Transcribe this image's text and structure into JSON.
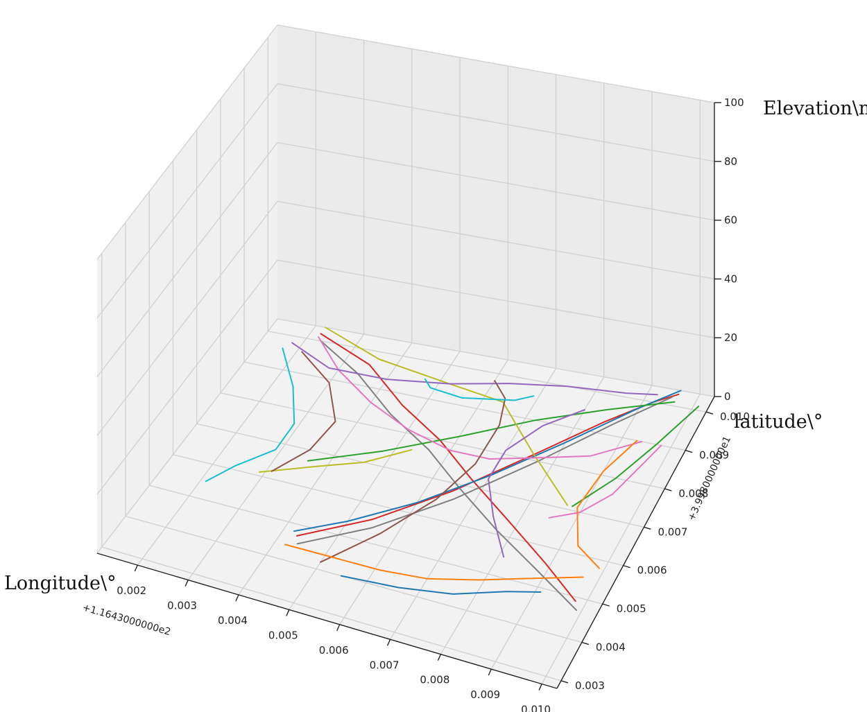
{
  "chart_data": {
    "type": "line",
    "projection": "3d",
    "title": "",
    "xlabel": "Longitude\\°",
    "ylabel": "latitude\\°",
    "zlabel": "Elevation\\m",
    "x_offset_label": "+1.1643000000e2",
    "y_offset_label": "+3.9980000000e1",
    "xlim": [
      0.0012,
      0.0103
    ],
    "ylim": [
      0.0028,
      0.0104
    ],
    "zlim": [
      0,
      100
    ],
    "x_ticks": [
      "0.002",
      "0.003",
      "0.004",
      "0.005",
      "0.006",
      "0.007",
      "0.008",
      "0.009",
      "0.010"
    ],
    "y_ticks": [
      "0.003",
      "0.004",
      "0.005",
      "0.006",
      "0.007",
      "0.008",
      "0.009",
      "0.010"
    ],
    "z_ticks": [
      "0",
      "20",
      "40",
      "60",
      "80",
      "100"
    ],
    "grid": true,
    "series": [
      {
        "color": "#d62728",
        "points": [
          [
            0.0022,
            0.0102,
            0
          ],
          [
            0.0035,
            0.0096,
            0
          ],
          [
            0.0046,
            0.0087,
            0
          ],
          [
            0.0057,
            0.008,
            0
          ],
          [
            0.0067,
            0.0072,
            0
          ],
          [
            0.0078,
            0.0064,
            0
          ],
          [
            0.0089,
            0.0056,
            0
          ],
          [
            0.0098,
            0.0049,
            0
          ]
        ]
      },
      {
        "color": "#d62728",
        "points": [
          [
            0.0043,
            0.0047,
            0
          ],
          [
            0.0054,
            0.0056,
            0
          ],
          [
            0.0065,
            0.0068,
            0
          ],
          [
            0.0076,
            0.0082,
            0
          ],
          [
            0.0085,
            0.0093,
            0
          ],
          [
            0.0092,
            0.01,
            0
          ],
          [
            0.0096,
            0.0103,
            0
          ]
        ]
      },
      {
        "color": "#7f7f7f",
        "points": [
          [
            0.0023,
            0.01,
            0
          ],
          [
            0.0034,
            0.0093,
            0
          ],
          [
            0.0045,
            0.0084,
            0
          ],
          [
            0.0056,
            0.0077,
            0
          ],
          [
            0.0066,
            0.0069,
            0
          ],
          [
            0.0077,
            0.0061,
            0
          ],
          [
            0.0088,
            0.0054,
            0
          ],
          [
            0.0099,
            0.0047,
            0
          ]
        ]
      },
      {
        "color": "#7f7f7f",
        "points": [
          [
            0.0044,
            0.0045,
            0
          ],
          [
            0.0055,
            0.0054,
            0
          ],
          [
            0.0066,
            0.0066,
            0
          ],
          [
            0.0077,
            0.008,
            0
          ],
          [
            0.0087,
            0.0093,
            0
          ],
          [
            0.0095,
            0.0102,
            0
          ]
        ]
      },
      {
        "color": "#1f77b4",
        "points": [
          [
            0.0042,
            0.0048,
            0
          ],
          [
            0.005,
            0.0054,
            0
          ],
          [
            0.006,
            0.0063,
            0
          ],
          [
            0.007,
            0.0074,
            0
          ],
          [
            0.008,
            0.0086,
            0
          ],
          [
            0.009,
            0.0098,
            0
          ],
          [
            0.0096,
            0.0104,
            0
          ]
        ]
      },
      {
        "color": "#1f77b4",
        "points": [
          [
            0.0055,
            0.004,
            0
          ],
          [
            0.0066,
            0.0041,
            0
          ],
          [
            0.0076,
            0.0043,
            0
          ],
          [
            0.0085,
            0.0047,
            0
          ],
          [
            0.0091,
            0.0049,
            0
          ]
        ]
      },
      {
        "color": "#2ca02c",
        "points": [
          [
            0.0036,
            0.0067,
            0
          ],
          [
            0.0048,
            0.0074,
            0
          ],
          [
            0.006,
            0.0082,
            0
          ],
          [
            0.0072,
            0.009,
            0
          ],
          [
            0.0084,
            0.0096,
            0
          ],
          [
            0.0096,
            0.0101,
            0
          ]
        ]
      },
      {
        "color": "#2ca02c",
        "points": [
          [
            0.0088,
            0.0071,
            0
          ],
          [
            0.0093,
            0.008,
            0
          ],
          [
            0.0097,
            0.009,
            0
          ],
          [
            0.0101,
            0.0101,
            0
          ]
        ]
      },
      {
        "color": "#bcbd22",
        "points": [
          [
            0.0022,
            0.0104,
            0
          ],
          [
            0.0036,
            0.0098,
            0
          ],
          [
            0.0052,
            0.0095,
            0
          ],
          [
            0.0064,
            0.0093,
            0
          ],
          [
            0.0075,
            0.0082,
            0
          ],
          [
            0.0087,
            0.0071,
            0
          ]
        ]
      },
      {
        "color": "#bcbd22",
        "points": [
          [
            0.0029,
            0.0061,
            0
          ],
          [
            0.0038,
            0.0066,
            0
          ],
          [
            0.0046,
            0.007,
            0
          ],
          [
            0.0053,
            0.0076,
            0
          ]
        ]
      },
      {
        "color": "#e377c2",
        "points": [
          [
            0.0022,
            0.0101,
            0
          ],
          [
            0.003,
            0.0093,
            0
          ],
          [
            0.004,
            0.0086,
            0
          ],
          [
            0.005,
            0.0081,
            0
          ],
          [
            0.006,
            0.0078,
            0
          ],
          [
            0.0068,
            0.0078,
            0
          ],
          [
            0.0077,
            0.0081,
            0
          ],
          [
            0.0086,
            0.0084,
            0
          ],
          [
            0.0094,
            0.009,
            0
          ]
        ]
      },
      {
        "color": "#e377c2",
        "points": [
          [
            0.0085,
            0.0067,
            0
          ],
          [
            0.009,
            0.007,
            0
          ],
          [
            0.0094,
            0.0076,
            0
          ],
          [
            0.0096,
            0.0083,
            0
          ],
          [
            0.0098,
            0.009,
            0
          ]
        ]
      },
      {
        "color": "#9467bd",
        "points": [
          [
            0.0018,
            0.0098,
            0
          ],
          [
            0.0028,
            0.0093,
            0
          ],
          [
            0.004,
            0.0093,
            0
          ],
          [
            0.0052,
            0.0095,
            0
          ],
          [
            0.0063,
            0.0098,
            0
          ],
          [
            0.0074,
            0.01,
            0
          ],
          [
            0.0086,
            0.0101,
            0
          ],
          [
            0.0092,
            0.0102,
            0
          ]
        ]
      },
      {
        "color": "#9467bd",
        "points": [
          [
            0.0081,
            0.0055,
            0
          ],
          [
            0.0075,
            0.0064,
            0
          ],
          [
            0.007,
            0.0073,
            0
          ],
          [
            0.007,
            0.0081,
            0
          ],
          [
            0.0074,
            0.0089,
            0
          ],
          [
            0.008,
            0.0095,
            0
          ]
        ]
      },
      {
        "color": "#8c564b",
        "points": [
          [
            0.0021,
            0.0096,
            0
          ],
          [
            0.003,
            0.0089,
            0
          ],
          [
            0.0036,
            0.0079,
            0
          ],
          [
            0.0035,
            0.007,
            0
          ],
          [
            0.0031,
            0.0062,
            0
          ]
        ]
      },
      {
        "color": "#8c564b",
        "points": [
          [
            0.005,
            0.0042,
            0
          ],
          [
            0.0057,
            0.0053,
            0
          ],
          [
            0.0063,
            0.0065,
            0
          ],
          [
            0.0066,
            0.0076,
            0
          ],
          [
            0.0066,
            0.0087,
            0
          ],
          [
            0.0064,
            0.0094,
            0
          ],
          [
            0.006,
            0.0098,
            0
          ]
        ]
      },
      {
        "color": "#17becf",
        "points": [
          [
            0.0017,
            0.0096,
            0
          ],
          [
            0.0024,
            0.0086,
            0
          ],
          [
            0.0029,
            0.0076,
            0
          ],
          [
            0.0029,
            0.0068,
            0
          ],
          [
            0.0024,
            0.0061,
            0
          ],
          [
            0.0021,
            0.0055,
            0
          ]
        ]
      },
      {
        "color": "#17becf",
        "points": [
          [
            0.0047,
            0.0095,
            0
          ],
          [
            0.0049,
            0.0093,
            0
          ],
          [
            0.0056,
            0.0092,
            0
          ],
          [
            0.0066,
            0.0094,
            0
          ],
          [
            0.0069,
            0.0096,
            0
          ]
        ]
      },
      {
        "color": "#ff7f0e",
        "points": [
          [
            0.0042,
            0.0044,
            0
          ],
          [
            0.0051,
            0.0044,
            0
          ],
          [
            0.0061,
            0.0044,
            0
          ],
          [
            0.007,
            0.0045,
            0
          ],
          [
            0.0079,
            0.0048,
            0
          ],
          [
            0.0089,
            0.0052,
            0
          ],
          [
            0.0097,
            0.0055,
            0
          ]
        ]
      },
      {
        "color": "#ff7f0e",
        "points": [
          [
            0.0093,
            0.009,
            0
          ],
          [
            0.009,
            0.0081,
            0
          ],
          [
            0.0089,
            0.0071,
            0
          ],
          [
            0.0093,
            0.0062,
            0
          ],
          [
            0.0099,
            0.0058,
            0
          ]
        ]
      }
    ]
  }
}
